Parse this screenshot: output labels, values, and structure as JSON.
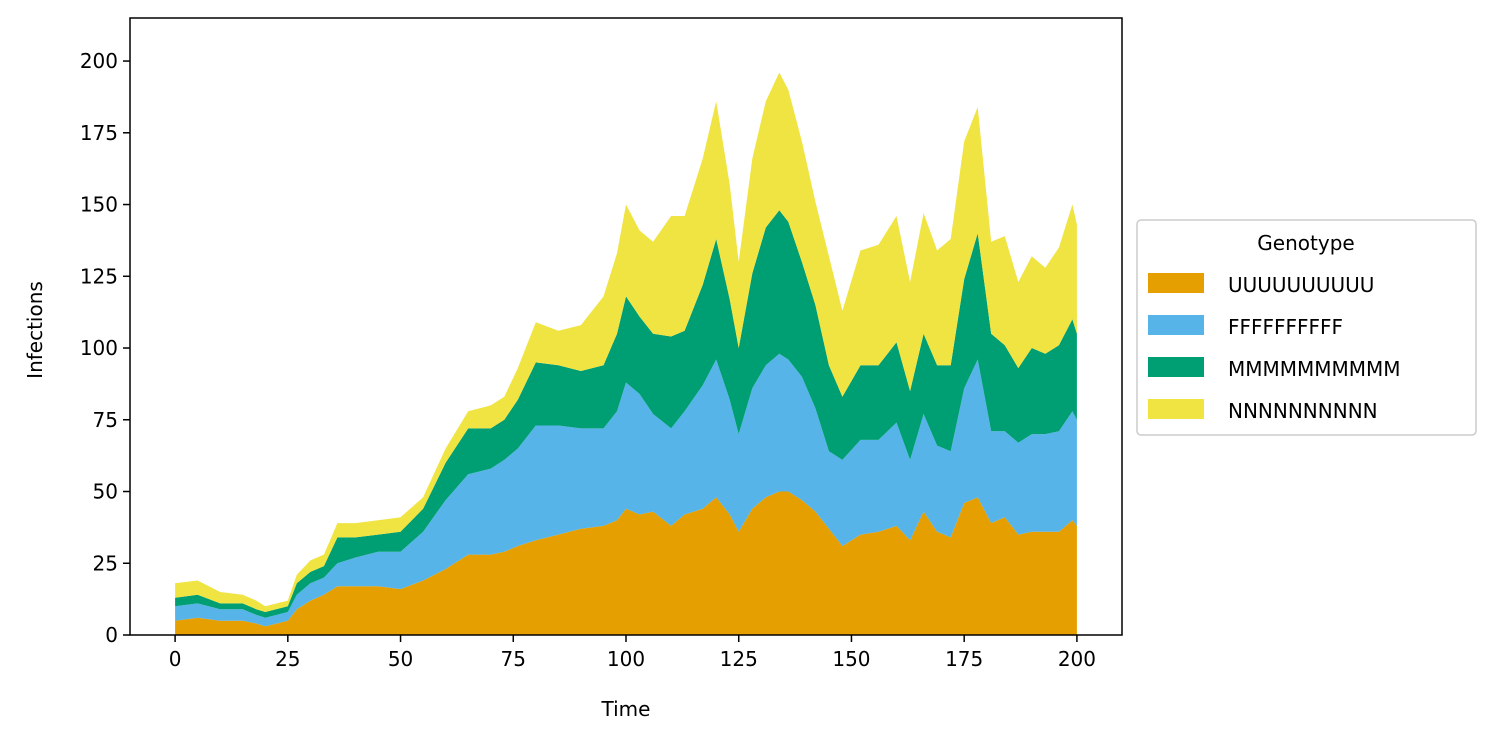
{
  "chart_data": {
    "type": "area",
    "stacked": true,
    "title": "",
    "xlabel": "Time",
    "ylabel": "Infections",
    "xlim": [
      -10,
      210
    ],
    "ylim": [
      0,
      215
    ],
    "xticks": [
      0,
      25,
      50,
      75,
      100,
      125,
      150,
      175,
      200
    ],
    "yticks": [
      0,
      25,
      50,
      75,
      100,
      125,
      150,
      175,
      200
    ],
    "grid": false,
    "legend": {
      "title": "Genotype",
      "placement": "center-right-outside"
    },
    "x": [
      0,
      5,
      10,
      15,
      18,
      20,
      25,
      27,
      30,
      33,
      36,
      40,
      45,
      50,
      55,
      60,
      65,
      70,
      73,
      76,
      80,
      85,
      90,
      95,
      98,
      100,
      103,
      106,
      110,
      113,
      117,
      120,
      123,
      125,
      128,
      131,
      134,
      136,
      139,
      142,
      145,
      148,
      152,
      156,
      160,
      163,
      166,
      169,
      172,
      175,
      178,
      181,
      184,
      187,
      190,
      193,
      196,
      199,
      200
    ],
    "series": [
      {
        "name": "UUUUUUUUUU",
        "color": "#E69F00",
        "values": [
          5,
          6,
          5,
          5,
          4,
          3,
          5,
          9,
          12,
          14,
          17,
          17,
          17,
          16,
          19,
          23,
          28,
          28,
          29,
          31,
          33,
          35,
          37,
          38,
          40,
          44,
          42,
          43,
          38,
          42,
          44,
          48,
          42,
          36,
          44,
          48,
          50,
          50,
          47,
          43,
          37,
          31,
          35,
          36,
          38,
          33,
          43,
          36,
          34,
          46,
          48,
          39,
          41,
          35,
          36,
          36,
          36,
          40,
          38
        ]
      },
      {
        "name": "FFFFFFFFFF",
        "color": "#56B4E9",
        "values": [
          5,
          5,
          4,
          4,
          3,
          3,
          3,
          5,
          6,
          6,
          8,
          10,
          12,
          13,
          17,
          24,
          28,
          30,
          32,
          34,
          40,
          38,
          35,
          34,
          38,
          44,
          42,
          34,
          34,
          36,
          43,
          48,
          40,
          34,
          42,
          46,
          48,
          46,
          43,
          36,
          27,
          30,
          33,
          32,
          36,
          28,
          34,
          30,
          30,
          40,
          48,
          32,
          30,
          32,
          34,
          34,
          35,
          38,
          37
        ]
      },
      {
        "name": "MMMMMMMMMM",
        "color": "#009E73",
        "values": [
          3,
          3,
          2,
          2,
          2,
          2,
          2,
          4,
          4,
          4,
          9,
          7,
          6,
          7,
          8,
          13,
          16,
          14,
          14,
          17,
          22,
          21,
          20,
          22,
          27,
          30,
          27,
          28,
          32,
          28,
          35,
          42,
          35,
          30,
          40,
          48,
          50,
          48,
          40,
          36,
          30,
          22,
          26,
          26,
          28,
          24,
          28,
          28,
          30,
          38,
          44,
          34,
          30,
          26,
          30,
          28,
          30,
          32,
          30
        ]
      },
      {
        "name": "NNNNNNNNNN",
        "color": "#F0E442",
        "values": [
          5,
          5,
          4,
          3,
          3,
          2,
          2,
          3,
          4,
          4,
          5,
          5,
          5,
          5,
          4,
          5,
          6,
          8,
          8,
          11,
          14,
          12,
          16,
          24,
          28,
          32,
          30,
          32,
          42,
          40,
          44,
          48,
          40,
          30,
          40,
          44,
          48,
          46,
          42,
          36,
          38,
          30,
          40,
          42,
          44,
          38,
          42,
          40,
          44,
          48,
          44,
          32,
          38,
          30,
          32,
          30,
          34,
          40,
          38
        ]
      }
    ]
  }
}
